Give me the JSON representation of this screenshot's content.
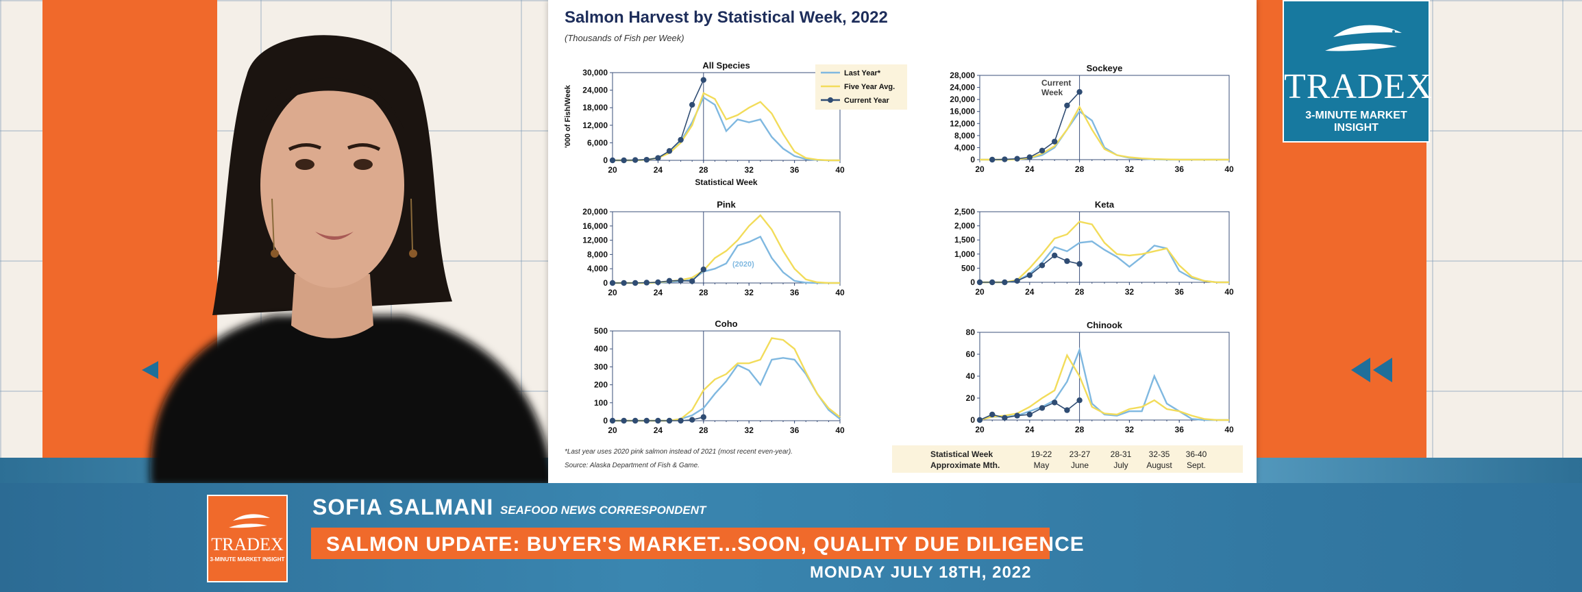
{
  "page": {
    "title": "Salmon Harvest by Statistical Week, 2022",
    "subtitle": "(Thousands of Fish per Week)",
    "footnote_1": "*Last year uses 2020 pink salmon instead of 2021 (most recent even-year).",
    "footnote_2": "Source: Alaska Department of Fish & Game."
  },
  "legend": {
    "entries": [
      "Last Year*",
      "Five Year Avg.",
      "Current Year"
    ],
    "colors": {
      "last_year": "#7fb8e0",
      "five_year": "#f2dc5a",
      "current": "#2f4c73"
    }
  },
  "week_table": {
    "row1_label": "Statistical Week",
    "row2_label": "Approximate Mth.",
    "weeks": [
      "19-22",
      "23-27",
      "28-31",
      "32-35",
      "36-40"
    ],
    "months": [
      "May",
      "June",
      "July",
      "August",
      "Sept."
    ]
  },
  "chart_data": [
    {
      "type": "line",
      "title": "All Species",
      "xlabel": "Statistical Week",
      "ylabel": "'000 of Fish/Week",
      "ylim": [
        0,
        30000
      ],
      "yticks": [
        "0",
        "6,000",
        "12,000",
        "18,000",
        "24,000",
        "30,000"
      ],
      "xlim": [
        20,
        40
      ],
      "xticks": [
        "20",
        "24",
        "28",
        "32",
        "36",
        "40"
      ],
      "vline": 28,
      "series": [
        {
          "name": "Last Year*",
          "x": [
            20,
            21,
            22,
            23,
            24,
            25,
            26,
            27,
            28,
            29,
            30,
            31,
            32,
            33,
            34,
            35,
            36,
            37,
            38,
            39,
            40
          ],
          "values": [
            0,
            0,
            0,
            200,
            900,
            3000,
            6500,
            13000,
            21500,
            19000,
            10000,
            14000,
            13000,
            14000,
            8000,
            4000,
            1500,
            400,
            100,
            0,
            0
          ]
        },
        {
          "name": "Five Year Avg.",
          "x": [
            20,
            21,
            22,
            23,
            24,
            25,
            26,
            27,
            28,
            29,
            30,
            31,
            32,
            33,
            34,
            35,
            36,
            37,
            38,
            39,
            40
          ],
          "values": [
            0,
            0,
            0,
            200,
            800,
            2500,
            6000,
            12000,
            23000,
            21000,
            14000,
            15500,
            18000,
            20000,
            16000,
            9000,
            3000,
            800,
            200,
            0,
            0
          ]
        },
        {
          "name": "Current Year",
          "x": [
            20,
            21,
            22,
            23,
            24,
            25,
            26,
            27,
            28
          ],
          "values": [
            0,
            0,
            100,
            200,
            800,
            3200,
            7000,
            19000,
            27500
          ]
        }
      ]
    },
    {
      "type": "line",
      "title": "Sockeye",
      "ylim": [
        0,
        28000
      ],
      "yticks": [
        "0",
        "4,000",
        "8,000",
        "12,000",
        "16,000",
        "20,000",
        "24,000",
        "28,000"
      ],
      "xlim": [
        20,
        40
      ],
      "xticks": [
        "20",
        "24",
        "28",
        "32",
        "36",
        "40"
      ],
      "vline": 28,
      "annotation": "Current Week",
      "series": [
        {
          "name": "Last Year*",
          "x": [
            20,
            21,
            22,
            23,
            24,
            25,
            26,
            27,
            28,
            29,
            30,
            31,
            32,
            33,
            34,
            35,
            36,
            37,
            38,
            39,
            40
          ],
          "values": [
            0,
            0,
            0,
            100,
            500,
            1500,
            4000,
            10000,
            16000,
            13000,
            4000,
            1500,
            600,
            300,
            100,
            0,
            0,
            0,
            0,
            0,
            0
          ]
        },
        {
          "name": "Five Year Avg.",
          "x": [
            20,
            21,
            22,
            23,
            24,
            25,
            26,
            27,
            28,
            29,
            30,
            31,
            32,
            33,
            34,
            35,
            36,
            37,
            38,
            39,
            40
          ],
          "values": [
            0,
            0,
            0,
            100,
            600,
            2000,
            4500,
            10000,
            17500,
            10000,
            3500,
            1500,
            800,
            400,
            200,
            100,
            0,
            0,
            0,
            0,
            0
          ]
        },
        {
          "name": "Current Year",
          "x": [
            21,
            22,
            23,
            24,
            25,
            26,
            27,
            28
          ],
          "values": [
            0,
            100,
            300,
            800,
            3000,
            6000,
            18000,
            22500
          ]
        }
      ]
    },
    {
      "type": "line",
      "title": "Pink",
      "ylim": [
        0,
        20000
      ],
      "yticks": [
        "0",
        "4,000",
        "8,000",
        "12,000",
        "16,000",
        "20,000"
      ],
      "xlim": [
        20,
        40
      ],
      "xticks": [
        "20",
        "24",
        "28",
        "32",
        "36",
        "40"
      ],
      "vline": 28,
      "annotation": "(2020)",
      "series": [
        {
          "name": "Last Year*",
          "x": [
            20,
            21,
            22,
            23,
            24,
            25,
            26,
            27,
            28,
            29,
            30,
            31,
            32,
            33,
            34,
            35,
            36,
            37,
            38,
            39,
            40
          ],
          "values": [
            0,
            0,
            0,
            0,
            100,
            300,
            500,
            900,
            3200,
            4000,
            5500,
            10500,
            11500,
            13000,
            7000,
            3000,
            600,
            100,
            0,
            0,
            0
          ]
        },
        {
          "name": "Five Year Avg.",
          "x": [
            20,
            21,
            22,
            23,
            24,
            25,
            26,
            27,
            28,
            29,
            30,
            31,
            32,
            33,
            34,
            35,
            36,
            37,
            38,
            39,
            40
          ],
          "values": [
            0,
            0,
            0,
            0,
            200,
            500,
            800,
            1500,
            3500,
            7000,
            9000,
            12000,
            16000,
            19000,
            15000,
            9000,
            4000,
            1000,
            200,
            0,
            0
          ]
        },
        {
          "name": "Current Year",
          "x": [
            20,
            21,
            22,
            23,
            24,
            25,
            26,
            27,
            28
          ],
          "values": [
            0,
            0,
            0,
            100,
            200,
            600,
            700,
            500,
            3800
          ]
        }
      ]
    },
    {
      "type": "line",
      "title": "Keta",
      "ylim": [
        0,
        2500
      ],
      "yticks": [
        "0",
        "500",
        "1,000",
        "1,500",
        "2,000",
        "2,500"
      ],
      "xlim": [
        20,
        40
      ],
      "xticks": [
        "20",
        "24",
        "28",
        "32",
        "36",
        "40"
      ],
      "vline": 28,
      "series": [
        {
          "name": "Last Year*",
          "x": [
            20,
            21,
            22,
            23,
            24,
            25,
            26,
            27,
            28,
            29,
            30,
            31,
            32,
            33,
            34,
            35,
            36,
            37,
            38,
            39,
            40
          ],
          "values": [
            0,
            0,
            0,
            50,
            300,
            700,
            1250,
            1100,
            1400,
            1450,
            1150,
            900,
            550,
            900,
            1300,
            1200,
            400,
            150,
            50,
            0,
            0
          ]
        },
        {
          "name": "Five Year Avg.",
          "x": [
            20,
            21,
            22,
            23,
            24,
            25,
            26,
            27,
            28,
            29,
            30,
            31,
            32,
            33,
            34,
            35,
            36,
            37,
            38,
            39,
            40
          ],
          "values": [
            0,
            0,
            0,
            80,
            500,
            1000,
            1550,
            1700,
            2150,
            2050,
            1400,
            1000,
            950,
            1000,
            1100,
            1200,
            600,
            200,
            50,
            0,
            0
          ]
        },
        {
          "name": "Current Year",
          "x": [
            20,
            21,
            22,
            23,
            24,
            25,
            26,
            27,
            28
          ],
          "values": [
            0,
            0,
            0,
            50,
            250,
            600,
            950,
            750,
            650
          ]
        }
      ]
    },
    {
      "type": "line",
      "title": "Coho",
      "ylim": [
        0,
        500
      ],
      "yticks": [
        "0",
        "100",
        "200",
        "300",
        "400",
        "500"
      ],
      "xlim": [
        20,
        40
      ],
      "xticks": [
        "20",
        "24",
        "28",
        "32",
        "36",
        "40"
      ],
      "vline": 28,
      "series": [
        {
          "name": "Last Year*",
          "x": [
            20,
            21,
            22,
            23,
            24,
            25,
            26,
            27,
            28,
            29,
            30,
            31,
            32,
            33,
            34,
            35,
            36,
            37,
            38,
            39,
            40
          ],
          "values": [
            0,
            0,
            0,
            0,
            0,
            0,
            10,
            30,
            70,
            150,
            220,
            310,
            280,
            200,
            340,
            350,
            340,
            260,
            150,
            60,
            10
          ]
        },
        {
          "name": "Five Year Avg.",
          "x": [
            20,
            21,
            22,
            23,
            24,
            25,
            26,
            27,
            28,
            29,
            30,
            31,
            32,
            33,
            34,
            35,
            36,
            37,
            38,
            39,
            40
          ],
          "values": [
            0,
            0,
            0,
            0,
            0,
            0,
            10,
            60,
            170,
            230,
            260,
            320,
            320,
            340,
            460,
            450,
            400,
            270,
            150,
            70,
            20
          ]
        },
        {
          "name": "Current Year",
          "x": [
            20,
            21,
            22,
            23,
            24,
            25,
            26,
            27,
            28
          ],
          "values": [
            0,
            0,
            0,
            0,
            0,
            0,
            0,
            5,
            20
          ]
        }
      ]
    },
    {
      "type": "line",
      "title": "Chinook",
      "ylim": [
        0,
        80
      ],
      "yticks": [
        "0",
        "20",
        "40",
        "60",
        "80"
      ],
      "xlim": [
        20,
        40
      ],
      "xticks": [
        "20",
        "24",
        "28",
        "32",
        "36",
        "40"
      ],
      "vline": 28,
      "series": [
        {
          "name": "Last Year*",
          "x": [
            20,
            21,
            22,
            23,
            24,
            25,
            26,
            27,
            28,
            29,
            30,
            31,
            32,
            33,
            34,
            35,
            36,
            37,
            38,
            39,
            40
          ],
          "values": [
            0,
            3,
            3,
            4,
            8,
            12,
            18,
            35,
            64,
            15,
            5,
            4,
            8,
            8,
            40,
            15,
            8,
            1,
            0,
            0,
            0
          ]
        },
        {
          "name": "Five Year Avg.",
          "x": [
            20,
            21,
            22,
            23,
            24,
            25,
            26,
            27,
            28,
            29,
            30,
            31,
            32,
            33,
            34,
            35,
            36,
            37,
            38,
            39,
            40
          ],
          "values": [
            0,
            3,
            4,
            6,
            12,
            20,
            27,
            59,
            40,
            12,
            6,
            5,
            10,
            12,
            18,
            10,
            8,
            4,
            1,
            0,
            0
          ]
        },
        {
          "name": "Current Year",
          "x": [
            20,
            21,
            22,
            23,
            24,
            25,
            26,
            27,
            28
          ],
          "values": [
            0,
            5,
            2,
            4,
            5,
            11,
            16,
            9,
            18
          ]
        }
      ]
    }
  ],
  "branding": {
    "logo_word": "TRADEX",
    "logo_tagline": "3-MINUTE MARKET INSIGHT"
  },
  "lower_third": {
    "name": "SOFIA SALMANI",
    "role": "SEAFOOD NEWS CORRESPONDENT",
    "headline": "SALMON UPDATE: BUYER'S MARKET...SOON, QUALITY DUE DILIGENCE",
    "date": "MONDAY JULY 18TH, 2022",
    "logo_word": "TRADEX",
    "logo_tagline": "3-MINUTE MARKET INSIGHT"
  }
}
